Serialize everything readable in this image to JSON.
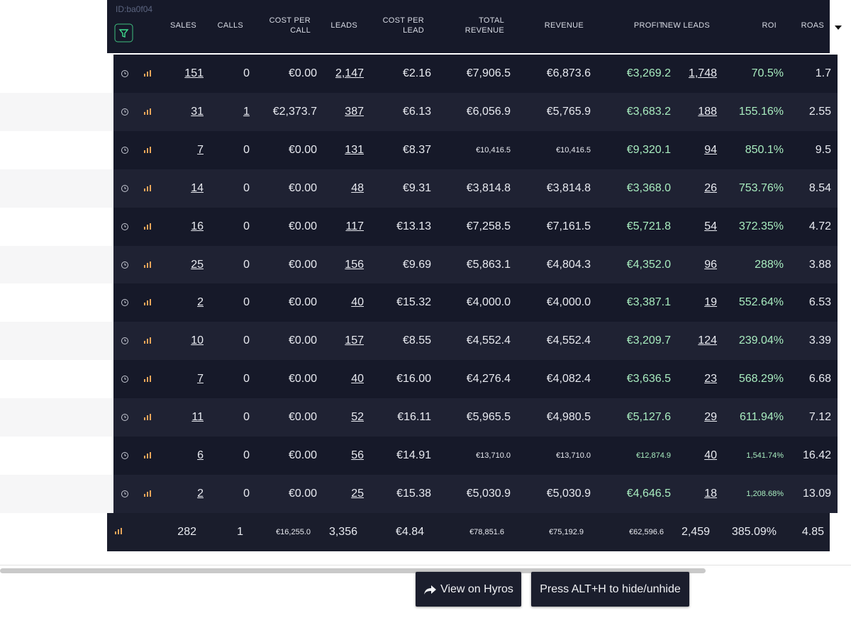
{
  "header": {
    "id_label": "ID:ba0f04",
    "columns": [
      "SALES",
      "CALLS",
      "COST PER CALL",
      "LEADS",
      "COST PER LEAD",
      "TOTAL REVENUE",
      "REVENUE",
      "PROFIT",
      "NEW LEADS",
      "ROI",
      "ROAS"
    ]
  },
  "table": {
    "rows": [
      [
        "151",
        "0",
        "€0.00",
        "2,147",
        "€2.16",
        "€7,906.5",
        "€6,873.6",
        "€3,269.2",
        "1,748",
        "70.5%",
        "1.7"
      ],
      [
        "31",
        "1",
        "€2,373.7",
        "387",
        "€6.13",
        "€6,056.9",
        "€5,765.9",
        "€3,683.2",
        "188",
        "155.16%",
        "2.55"
      ],
      [
        "7",
        "0",
        "€0.00",
        "131",
        "€8.37",
        "€10,416.5",
        "€10,416.5",
        "€9,320.1",
        "94",
        "850.1%",
        "9.5"
      ],
      [
        "14",
        "0",
        "€0.00",
        "48",
        "€9.31",
        "€3,814.8",
        "€3,814.8",
        "€3,368.0",
        "26",
        "753.76%",
        "8.54"
      ],
      [
        "16",
        "0",
        "€0.00",
        "117",
        "€13.13",
        "€7,258.5",
        "€7,161.5",
        "€5,721.8",
        "54",
        "372.35%",
        "4.72"
      ],
      [
        "25",
        "0",
        "€0.00",
        "156",
        "€9.69",
        "€5,863.1",
        "€4,804.3",
        "€4,352.0",
        "96",
        "288%",
        "3.88"
      ],
      [
        "2",
        "0",
        "€0.00",
        "40",
        "€15.32",
        "€4,000.0",
        "€4,000.0",
        "€3,387.1",
        "19",
        "552.64%",
        "6.53"
      ],
      [
        "10",
        "0",
        "€0.00",
        "157",
        "€8.55",
        "€4,552.4",
        "€4,552.4",
        "€3,209.7",
        "124",
        "239.04%",
        "3.39"
      ],
      [
        "7",
        "0",
        "€0.00",
        "40",
        "€16.00",
        "€4,276.4",
        "€4,082.4",
        "€3,636.5",
        "23",
        "568.29%",
        "6.68"
      ],
      [
        "11",
        "0",
        "€0.00",
        "52",
        "€16.11",
        "€5,965.5",
        "€4,980.5",
        "€5,127.6",
        "29",
        "611.94%",
        "7.12"
      ],
      [
        "6",
        "0",
        "€0.00",
        "56",
        "€14.91",
        "€13,710.0",
        "€13,710.0",
        "€12,874.9",
        "40",
        "1,541.74%",
        "16.42"
      ],
      [
        "2",
        "0",
        "€0.00",
        "25",
        "€15.38",
        "€5,030.9",
        "€5,030.9",
        "€4,646.5",
        "18",
        "1,208.68%",
        "13.09"
      ]
    ]
  },
  "totals": [
    "282",
    "1",
    "€16,255.0",
    "3,356",
    "€4.84",
    "€78,851.6",
    "€75,192.9",
    "€62,596.6",
    "2,459",
    "385.09%",
    "4.85"
  ],
  "buttons": {
    "view": "View on Hyros",
    "toggle": "Press ALT+H to hide/unhide"
  }
}
